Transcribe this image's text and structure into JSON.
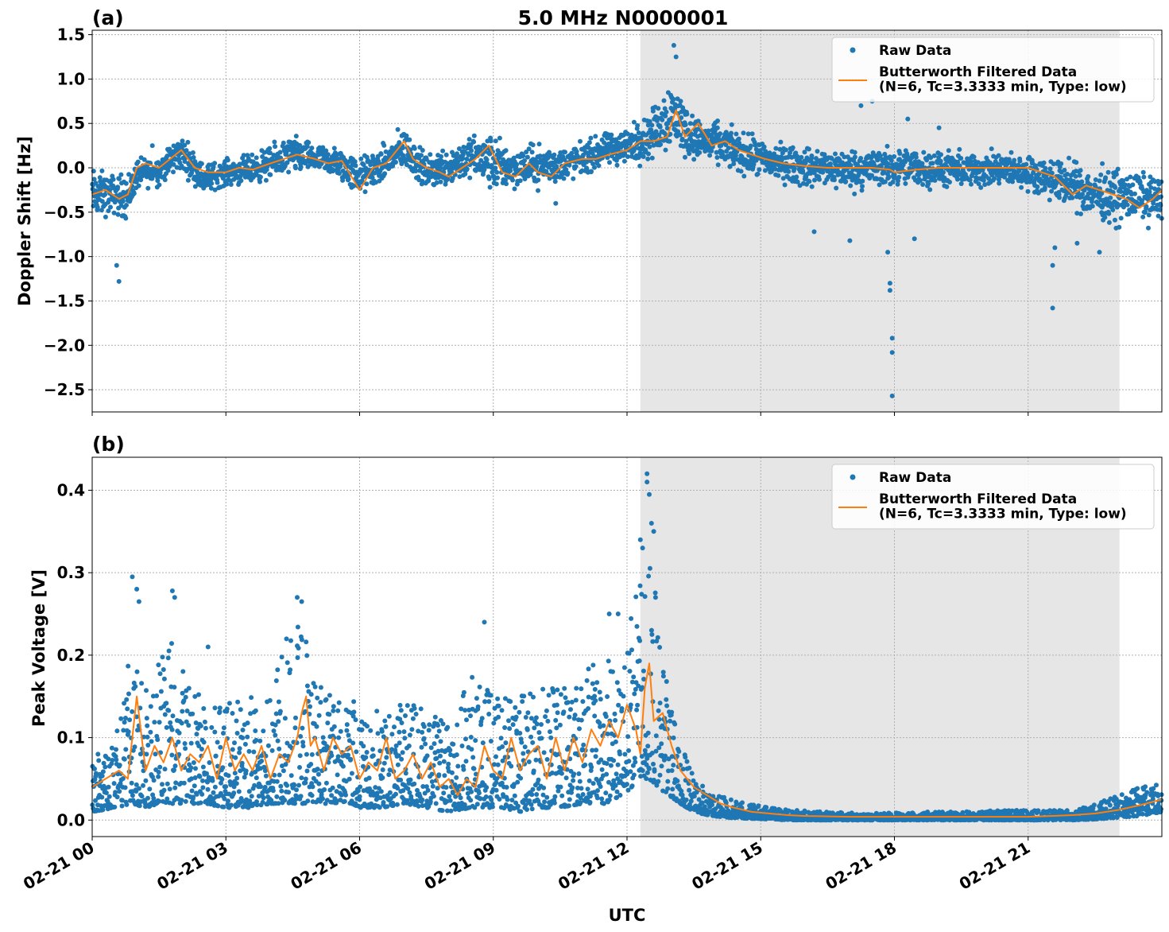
{
  "chart_data": [
    {
      "type": "scatter",
      "panel_label": "(a)",
      "title": "5.0 MHz N0000001",
      "xlabel": "",
      "ylabel": "Doppler Shift [Hz]",
      "xlim": [
        0,
        24
      ],
      "ylim": [
        -2.75,
        1.55
      ],
      "x_tick_values": [
        0,
        3,
        6,
        9,
        12,
        15,
        18,
        21
      ],
      "x_tick_labels": [
        "02-21 00",
        "02-21 03",
        "02-21 06",
        "02-21 09",
        "02-21 12",
        "02-21 15",
        "02-21 18",
        "02-21 21"
      ],
      "y_tick_values": [
        -2.5,
        -2.0,
        -1.5,
        -1.0,
        -0.5,
        0.0,
        0.5,
        1.0,
        1.5
      ],
      "y_tick_labels": [
        "−2.5",
        "−2.0",
        "−1.5",
        "−1.0",
        "−0.5",
        "0.0",
        "0.5",
        "1.0",
        "1.5"
      ],
      "grid": true,
      "legend_position": "top-right",
      "shaded_span": [
        12.3,
        23.05
      ],
      "shade_color": "#e6e6e6",
      "series": [
        {
          "name": "Raw Data",
          "kind": "points",
          "color": "#1f77b4",
          "band_x": [
            0,
            0.5,
            0.8,
            1.0,
            1.5,
            2.0,
            2.5,
            3.0,
            3.5,
            4.0,
            4.5,
            5.0,
            5.5,
            6.0,
            6.5,
            7.0,
            7.5,
            8.0,
            8.5,
            9.0,
            9.5,
            10.0,
            10.5,
            11.0,
            11.5,
            12.0,
            12.5,
            13.0,
            13.5,
            14.0,
            14.5,
            15.0,
            15.5,
            16.0,
            16.5,
            17.0,
            17.5,
            18.0,
            18.5,
            19.0,
            19.5,
            20.0,
            20.5,
            21.0,
            21.5,
            22.0,
            22.5,
            23.0,
            23.5,
            24.0
          ],
          "band_low": [
            -0.7,
            -0.6,
            -0.7,
            -0.3,
            -0.25,
            -0.1,
            -0.35,
            -0.25,
            -0.25,
            -0.2,
            -0.15,
            -0.1,
            -0.2,
            -0.4,
            -0.25,
            -0.1,
            -0.3,
            -0.3,
            -0.2,
            -0.4,
            -0.3,
            -0.3,
            -0.25,
            -0.15,
            -0.05,
            -0.05,
            0.0,
            0.05,
            0.0,
            -0.05,
            -0.15,
            -0.2,
            -0.25,
            -0.3,
            -0.3,
            -0.35,
            -0.3,
            -0.3,
            -0.3,
            -0.3,
            -0.3,
            -0.3,
            -0.3,
            -0.3,
            -0.45,
            -0.55,
            -0.7,
            -0.75,
            -0.7,
            -0.7
          ],
          "band_high": [
            0.1,
            0.0,
            0.05,
            0.15,
            0.2,
            0.45,
            0.1,
            0.15,
            0.2,
            0.3,
            0.45,
            0.3,
            0.3,
            0.2,
            0.3,
            0.55,
            0.2,
            0.35,
            0.45,
            0.5,
            0.3,
            0.35,
            0.3,
            0.35,
            0.45,
            0.55,
            0.7,
            1.2,
            0.65,
            0.6,
            0.5,
            0.4,
            0.35,
            0.3,
            0.3,
            0.3,
            0.3,
            0.3,
            0.3,
            0.25,
            0.25,
            0.25,
            0.25,
            0.2,
            0.2,
            0.15,
            0.1,
            0.1,
            0.05,
            0.0
          ],
          "outliers": [
            [
              0.6,
              -1.28
            ],
            [
              0.55,
              -1.1
            ],
            [
              1.35,
              0.25
            ],
            [
              10.4,
              -0.4
            ],
            [
              13.05,
              1.38
            ],
            [
              13.1,
              1.25
            ],
            [
              16.2,
              -0.72
            ],
            [
              17.0,
              -0.82
            ],
            [
              17.25,
              0.7
            ],
            [
              17.5,
              0.75
            ],
            [
              17.9,
              0.95
            ],
            [
              17.85,
              -0.95
            ],
            [
              17.9,
              -1.3
            ],
            [
              17.9,
              -1.38
            ],
            [
              17.95,
              -1.92
            ],
            [
              17.95,
              -2.08
            ],
            [
              17.95,
              -2.57
            ],
            [
              18.3,
              0.55
            ],
            [
              18.45,
              -0.8
            ],
            [
              19.0,
              0.45
            ],
            [
              21.6,
              -0.9
            ],
            [
              21.55,
              -1.1
            ],
            [
              21.55,
              -1.58
            ],
            [
              22.1,
              -0.85
            ],
            [
              22.6,
              -0.95
            ]
          ]
        },
        {
          "name": "Butterworth Filtered Data\n(N=6, Tc=3.3333 min, Type: low)",
          "kind": "line",
          "color": "#ff7f0e",
          "x": [
            0,
            0.3,
            0.6,
            0.8,
            1.0,
            1.2,
            1.5,
            1.8,
            2.0,
            2.3,
            2.6,
            3.0,
            3.3,
            3.6,
            4.0,
            4.3,
            4.6,
            5.0,
            5.3,
            5.6,
            6.0,
            6.3,
            6.6,
            7.0,
            7.2,
            7.5,
            7.8,
            8.0,
            8.3,
            8.6,
            8.9,
            9.2,
            9.5,
            9.8,
            10.0,
            10.3,
            10.6,
            11.0,
            11.3,
            11.6,
            12.0,
            12.3,
            12.6,
            12.9,
            13.1,
            13.3,
            13.6,
            13.9,
            14.2,
            14.5,
            14.8,
            15.1,
            15.5,
            16.0,
            16.5,
            17.0,
            17.5,
            17.9,
            18.0,
            18.5,
            19.0,
            19.5,
            20.0,
            20.5,
            21.0,
            21.3,
            21.6,
            22.0,
            22.3,
            22.6,
            22.9,
            23.2,
            23.5,
            23.8,
            24.0
          ],
          "y": [
            -0.3,
            -0.25,
            -0.35,
            -0.3,
            0.0,
            0.05,
            0.0,
            0.12,
            0.2,
            0.0,
            -0.05,
            -0.05,
            0.0,
            -0.02,
            0.05,
            0.1,
            0.15,
            0.1,
            0.05,
            0.08,
            -0.25,
            0.0,
            0.05,
            0.3,
            0.1,
            0.0,
            -0.05,
            -0.1,
            0.0,
            0.1,
            0.25,
            -0.05,
            -0.1,
            0.05,
            -0.05,
            -0.1,
            0.05,
            0.1,
            0.1,
            0.15,
            0.2,
            0.3,
            0.3,
            0.35,
            0.65,
            0.35,
            0.5,
            0.25,
            0.3,
            0.2,
            0.15,
            0.1,
            0.05,
            0.02,
            0.0,
            0.0,
            0.0,
            -0.02,
            -0.05,
            -0.02,
            0.0,
            0.0,
            0.0,
            0.0,
            0.0,
            -0.05,
            -0.1,
            -0.3,
            -0.2,
            -0.25,
            -0.3,
            -0.35,
            -0.45,
            -0.35,
            -0.25
          ]
        }
      ]
    },
    {
      "type": "scatter",
      "panel_label": "(b)",
      "title": "",
      "xlabel": "UTC",
      "ylabel": "Peak Voltage [V]",
      "xlim": [
        0,
        24
      ],
      "ylim": [
        -0.02,
        0.44
      ],
      "x_tick_values": [
        0,
        3,
        6,
        9,
        12,
        15,
        18,
        21
      ],
      "x_tick_labels": [
        "02-21 00",
        "02-21 03",
        "02-21 06",
        "02-21 09",
        "02-21 12",
        "02-21 15",
        "02-21 18",
        "02-21 21"
      ],
      "y_tick_values": [
        0.0,
        0.1,
        0.2,
        0.3,
        0.4
      ],
      "y_tick_labels": [
        "0.0",
        "0.1",
        "0.2",
        "0.3",
        "0.4"
      ],
      "grid": true,
      "legend_position": "top-right",
      "shaded_span": [
        12.3,
        23.05
      ],
      "shade_color": "#e6e6e6",
      "series": [
        {
          "name": "Raw Data",
          "kind": "points",
          "color": "#1f77b4",
          "band_x": [
            0,
            0.5,
            0.9,
            1.2,
            1.5,
            1.8,
            2.1,
            2.5,
            3.0,
            3.5,
            4.0,
            4.3,
            4.6,
            4.9,
            5.2,
            5.6,
            6.0,
            6.5,
            7.0,
            7.5,
            8.0,
            8.5,
            8.8,
            9.2,
            9.6,
            10.0,
            10.5,
            11.0,
            11.5,
            11.9,
            12.1,
            12.3,
            12.5,
            12.7,
            12.9,
            13.2,
            13.5,
            13.9,
            14.3,
            14.7,
            15.2,
            15.8,
            16.5,
            17.5,
            18.5,
            19.5,
            20.5,
            21.5,
            22.0,
            22.5,
            23.0,
            23.5,
            24.0
          ],
          "band_low": [
            0.01,
            0.015,
            0.02,
            0.015,
            0.02,
            0.02,
            0.02,
            0.02,
            0.015,
            0.015,
            0.02,
            0.02,
            0.02,
            0.02,
            0.02,
            0.02,
            0.015,
            0.015,
            0.02,
            0.015,
            0.01,
            0.015,
            0.015,
            0.015,
            0.01,
            0.015,
            0.015,
            0.02,
            0.02,
            0.03,
            0.04,
            0.05,
            0.05,
            0.04,
            0.03,
            0.02,
            0.01,
            0.005,
            0.003,
            0.002,
            0.001,
            0.0,
            0.0,
            0.0,
            0.0,
            0.0,
            0.0,
            0.0,
            0.0,
            0.001,
            0.003,
            0.005,
            0.01
          ],
          "band_high": [
            0.08,
            0.09,
            0.22,
            0.16,
            0.19,
            0.22,
            0.17,
            0.15,
            0.14,
            0.15,
            0.15,
            0.22,
            0.25,
            0.2,
            0.17,
            0.14,
            0.15,
            0.13,
            0.15,
            0.13,
            0.12,
            0.18,
            0.16,
            0.15,
            0.15,
            0.17,
            0.16,
            0.18,
            0.2,
            0.18,
            0.25,
            0.3,
            0.32,
            0.28,
            0.18,
            0.1,
            0.05,
            0.035,
            0.025,
            0.02,
            0.015,
            0.012,
            0.01,
            0.008,
            0.01,
            0.01,
            0.012,
            0.012,
            0.012,
            0.02,
            0.03,
            0.04,
            0.045
          ],
          "outliers": [
            [
              0.9,
              0.295
            ],
            [
              1.0,
              0.28
            ],
            [
              1.05,
              0.265
            ],
            [
              1.8,
              0.278
            ],
            [
              1.85,
              0.27
            ],
            [
              2.6,
              0.21
            ],
            [
              4.6,
              0.27
            ],
            [
              4.7,
              0.265
            ],
            [
              8.8,
              0.24
            ],
            [
              12.3,
              0.34
            ],
            [
              12.35,
              0.33
            ],
            [
              12.45,
              0.42
            ],
            [
              12.45,
              0.41
            ],
            [
              12.5,
              0.395
            ],
            [
              12.55,
              0.36
            ],
            [
              12.6,
              0.35
            ],
            [
              11.6,
              0.25
            ],
            [
              11.8,
              0.25
            ]
          ]
        },
        {
          "name": "Butterworth Filtered Data\n(N=6, Tc=3.3333 min, Type: low)",
          "kind": "line",
          "color": "#ff7f0e",
          "x": [
            0,
            0.3,
            0.6,
            0.8,
            0.9,
            1.0,
            1.2,
            1.4,
            1.6,
            1.8,
            2.0,
            2.2,
            2.4,
            2.6,
            2.8,
            3.0,
            3.2,
            3.4,
            3.6,
            3.8,
            4.0,
            4.2,
            4.4,
            4.6,
            4.7,
            4.8,
            4.9,
            5.0,
            5.2,
            5.4,
            5.6,
            5.8,
            6.0,
            6.2,
            6.4,
            6.6,
            6.8,
            7.0,
            7.2,
            7.4,
            7.6,
            7.8,
            8.0,
            8.2,
            8.4,
            8.6,
            8.8,
            9.0,
            9.2,
            9.4,
            9.6,
            9.8,
            10.0,
            10.2,
            10.4,
            10.6,
            10.8,
            11.0,
            11.2,
            11.4,
            11.6,
            11.8,
            12.0,
            12.2,
            12.3,
            12.4,
            12.5,
            12.6,
            12.8,
            13.0,
            13.2,
            13.5,
            13.8,
            14.1,
            14.4,
            14.8,
            15.2,
            15.6,
            16.0,
            17.0,
            18.0,
            19.0,
            20.0,
            21.0,
            21.5,
            22.0,
            22.5,
            23.0,
            23.5,
            24.0
          ],
          "y": [
            0.04,
            0.05,
            0.06,
            0.05,
            0.1,
            0.15,
            0.06,
            0.09,
            0.07,
            0.1,
            0.06,
            0.08,
            0.07,
            0.09,
            0.05,
            0.1,
            0.06,
            0.08,
            0.06,
            0.09,
            0.05,
            0.08,
            0.07,
            0.1,
            0.13,
            0.15,
            0.09,
            0.1,
            0.06,
            0.1,
            0.08,
            0.09,
            0.05,
            0.07,
            0.06,
            0.1,
            0.05,
            0.06,
            0.08,
            0.05,
            0.07,
            0.04,
            0.05,
            0.03,
            0.05,
            0.04,
            0.09,
            0.06,
            0.05,
            0.1,
            0.06,
            0.08,
            0.09,
            0.05,
            0.1,
            0.06,
            0.1,
            0.07,
            0.11,
            0.09,
            0.12,
            0.1,
            0.14,
            0.11,
            0.08,
            0.16,
            0.19,
            0.12,
            0.13,
            0.09,
            0.06,
            0.04,
            0.03,
            0.02,
            0.015,
            0.01,
            0.008,
            0.006,
            0.005,
            0.004,
            0.004,
            0.004,
            0.004,
            0.004,
            0.005,
            0.006,
            0.008,
            0.012,
            0.018,
            0.025
          ]
        }
      ]
    }
  ]
}
